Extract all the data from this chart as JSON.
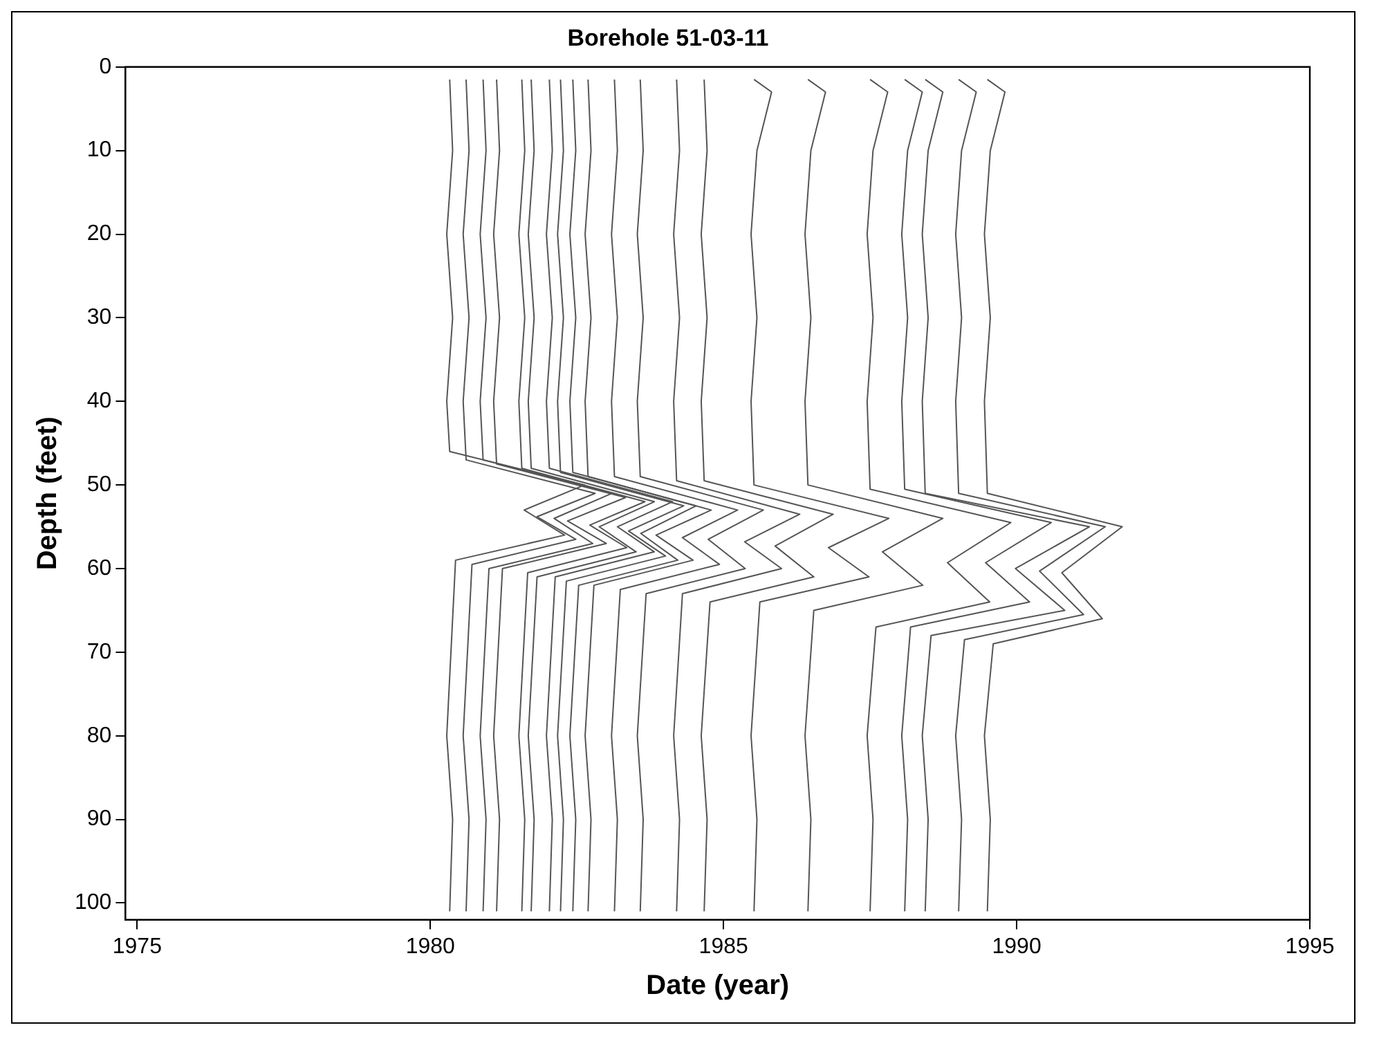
{
  "chart_data": {
    "type": "line",
    "title": "Borehole 51-03-11",
    "xlabel": "Date (year)",
    "ylabel": "Depth (feet)",
    "xlim": [
      1974.8,
      1995
    ],
    "xticks": [
      1975,
      1980,
      1985,
      1990,
      1995
    ],
    "ylim": [
      102,
      0
    ],
    "yticks": [
      0,
      10,
      20,
      30,
      40,
      50,
      60,
      70,
      80,
      90,
      100
    ],
    "grid": false,
    "legend": false,
    "marker": "none",
    "line_style": "solid",
    "series": [
      {
        "color": "#555555",
        "x": [
          1980.33,
          1980.38,
          1980.28,
          1980.38,
          1980.28,
          1980.33,
          1982.63,
          1981.6,
          1982.29,
          1980.43,
          1980.28,
          1980.38,
          1980.33
        ],
        "values": [
          1.5,
          10,
          20,
          30,
          40,
          46,
          50,
          53,
          56,
          59,
          80,
          90,
          101
        ]
      },
      {
        "color": "#555555",
        "x": [
          1980.61,
          1980.66,
          1980.56,
          1980.66,
          1980.56,
          1980.61,
          1982.81,
          1981.82,
          1982.48,
          1980.71,
          1980.56,
          1980.66,
          1980.61
        ],
        "values": [
          1.5,
          10,
          20,
          30,
          40,
          47,
          51,
          53.8,
          56.5,
          59.5,
          80,
          90,
          101
        ]
      },
      {
        "color": "#555555",
        "x": [
          1980.9,
          1980.95,
          1980.85,
          1980.95,
          1980.85,
          1980.9,
          1983.1,
          1982.11,
          1982.77,
          1981.0,
          1980.85,
          1980.95,
          1980.9
        ],
        "values": [
          1.5,
          10,
          20,
          30,
          40,
          47,
          51,
          54,
          57,
          60,
          80,
          90,
          101
        ]
      },
      {
        "color": "#555555",
        "x": [
          1981.13,
          1981.18,
          1981.08,
          1981.18,
          1981.08,
          1981.13,
          1983.33,
          1982.34,
          1983.0,
          1981.23,
          1981.08,
          1981.18,
          1981.13
        ],
        "values": [
          1.5,
          10,
          20,
          30,
          40,
          47.5,
          51.5,
          54.3,
          57,
          60,
          80,
          90,
          101
        ]
      },
      {
        "color": "#555555",
        "x": [
          1981.56,
          1981.61,
          1981.51,
          1981.61,
          1981.51,
          1981.56,
          1983.66,
          1982.72,
          1983.35,
          1981.66,
          1981.51,
          1981.61,
          1981.56
        ],
        "values": [
          1.5,
          10,
          20,
          30,
          40,
          48,
          52,
          54.8,
          57.5,
          60.5,
          80,
          90,
          101
        ]
      },
      {
        "color": "#555555",
        "x": [
          1981.72,
          1981.77,
          1981.67,
          1981.77,
          1981.67,
          1981.72,
          1983.82,
          1982.88,
          1983.51,
          1981.82,
          1981.67,
          1981.77,
          1981.72
        ],
        "values": [
          1.5,
          10,
          20,
          30,
          40,
          48,
          52,
          55,
          58,
          61,
          80,
          90,
          101
        ]
      },
      {
        "color": "#555555",
        "x": [
          1982.03,
          1982.08,
          1981.98,
          1982.08,
          1981.98,
          1982.03,
          1984.13,
          1983.19,
          1983.82,
          1982.13,
          1981.98,
          1982.08,
          1982.03
        ],
        "values": [
          1.5,
          10,
          20,
          30,
          40,
          48,
          52,
          55,
          58,
          61,
          80,
          90,
          101
        ]
      },
      {
        "color": "#555555",
        "x": [
          1982.22,
          1982.27,
          1982.17,
          1982.27,
          1982.17,
          1982.22,
          1984.32,
          1983.38,
          1984.01,
          1982.32,
          1982.17,
          1982.27,
          1982.22
        ],
        "values": [
          1.5,
          10,
          20,
          30,
          40,
          48.5,
          52.5,
          55.5,
          58.5,
          61.5,
          80,
          90,
          101
        ]
      },
      {
        "color": "#555555",
        "x": [
          1982.43,
          1982.48,
          1982.38,
          1982.48,
          1982.38,
          1982.43,
          1984.53,
          1983.59,
          1984.22,
          1982.53,
          1982.38,
          1982.48,
          1982.43
        ],
        "values": [
          1.5,
          10,
          20,
          30,
          40,
          48.5,
          52.5,
          55.8,
          59,
          62,
          80,
          90,
          101
        ]
      },
      {
        "color": "#555555",
        "x": [
          1982.69,
          1982.74,
          1982.64,
          1982.74,
          1982.64,
          1982.69,
          1984.79,
          1983.85,
          1984.48,
          1982.79,
          1982.64,
          1982.74,
          1982.69
        ],
        "values": [
          1.5,
          10,
          20,
          30,
          40,
          49,
          53,
          56,
          59,
          62,
          80,
          90,
          101
        ]
      },
      {
        "color": "#555555",
        "x": [
          1983.14,
          1983.19,
          1983.09,
          1983.19,
          1983.09,
          1983.14,
          1985.24,
          1984.3,
          1984.93,
          1983.24,
          1983.09,
          1983.19,
          1983.14
        ],
        "values": [
          1.5,
          10,
          20,
          30,
          40,
          49,
          53,
          56.3,
          59.5,
          62.5,
          80,
          90,
          101
        ]
      },
      {
        "color": "#555555",
        "x": [
          1983.58,
          1983.63,
          1983.53,
          1983.63,
          1983.53,
          1983.58,
          1985.68,
          1984.74,
          1985.37,
          1983.68,
          1983.53,
          1983.63,
          1983.58
        ],
        "values": [
          1.5,
          10,
          20,
          30,
          40,
          49,
          53,
          56.5,
          60,
          63,
          80,
          90,
          101
        ]
      },
      {
        "color": "#555555",
        "x": [
          1984.2,
          1984.25,
          1984.15,
          1984.25,
          1984.15,
          1984.2,
          1986.3,
          1985.36,
          1985.99,
          1984.3,
          1984.15,
          1984.25,
          1984.2
        ],
        "values": [
          1.5,
          10,
          20,
          30,
          40,
          49.5,
          53.5,
          56.8,
          60,
          63,
          80,
          90,
          101
        ]
      },
      {
        "color": "#555555",
        "x": [
          1984.67,
          1984.72,
          1984.62,
          1984.72,
          1984.62,
          1984.67,
          1986.87,
          1985.88,
          1986.54,
          1984.77,
          1984.62,
          1984.72,
          1984.67
        ],
        "values": [
          1.5,
          10,
          20,
          30,
          40,
          49.5,
          53.5,
          57.3,
          61,
          64,
          80,
          90,
          101
        ]
      },
      {
        "color": "#555555",
        "x": [
          1985.52,
          1985.82,
          1985.57,
          1985.47,
          1985.57,
          1985.47,
          1985.52,
          1987.82,
          1986.79,
          1987.48,
          1985.62,
          1985.47,
          1985.57,
          1985.52
        ],
        "values": [
          1.5,
          3,
          10,
          20,
          30,
          40,
          50,
          54,
          57.5,
          61,
          64,
          80,
          90,
          101
        ]
      },
      {
        "color": "#555555",
        "x": [
          1986.44,
          1986.74,
          1986.49,
          1986.39,
          1986.49,
          1986.39,
          1986.44,
          1988.74,
          1987.71,
          1988.4,
          1986.54,
          1986.39,
          1986.49,
          1986.44
        ],
        "values": [
          1.5,
          3,
          10,
          20,
          30,
          40,
          50,
          54,
          58,
          62,
          65,
          80,
          90,
          101
        ]
      },
      {
        "color": "#555555",
        "x": [
          1987.5,
          1987.8,
          1987.55,
          1987.45,
          1987.55,
          1987.45,
          1987.5,
          1989.9,
          1988.82,
          1989.54,
          1987.6,
          1987.45,
          1987.55,
          1987.5
        ],
        "values": [
          1.5,
          3,
          10,
          20,
          30,
          40,
          50.5,
          54.5,
          59.3,
          64,
          67,
          80,
          90,
          101
        ]
      },
      {
        "color": "#555555",
        "x": [
          1988.09,
          1988.39,
          1988.14,
          1988.04,
          1988.14,
          1988.04,
          1988.09,
          1990.59,
          1989.47,
          1990.22,
          1988.19,
          1988.04,
          1988.14,
          1988.09
        ],
        "values": [
          1.5,
          3,
          10,
          20,
          30,
          40,
          50.5,
          54.5,
          59.3,
          64,
          67,
          80,
          90,
          101
        ]
      },
      {
        "color": "#555555",
        "x": [
          1988.44,
          1988.74,
          1988.49,
          1988.39,
          1988.49,
          1988.39,
          1988.44,
          1991.24,
          1989.98,
          1990.82,
          1988.54,
          1988.39,
          1988.49,
          1988.44
        ],
        "values": [
          1.5,
          3,
          10,
          20,
          30,
          40,
          51,
          55,
          60,
          65,
          68,
          80,
          90,
          101
        ]
      },
      {
        "color": "#555555",
        "x": [
          1989.01,
          1989.31,
          1989.06,
          1988.96,
          1989.06,
          1988.96,
          1989.01,
          1991.51,
          1990.39,
          1991.14,
          1989.11,
          1988.96,
          1989.06,
          1989.01
        ],
        "values": [
          1.5,
          3,
          10,
          20,
          30,
          40,
          51,
          55,
          60.3,
          65.5,
          68.5,
          80,
          90,
          101
        ]
      },
      {
        "color": "#555555",
        "x": [
          1989.5,
          1989.8,
          1989.55,
          1989.45,
          1989.55,
          1989.45,
          1989.5,
          1991.8,
          1990.77,
          1991.46,
          1989.6,
          1989.45,
          1989.55,
          1989.5
        ],
        "values": [
          1.5,
          3,
          10,
          20,
          30,
          40,
          51,
          55,
          60.5,
          66,
          69,
          80,
          90,
          101
        ]
      }
    ]
  }
}
